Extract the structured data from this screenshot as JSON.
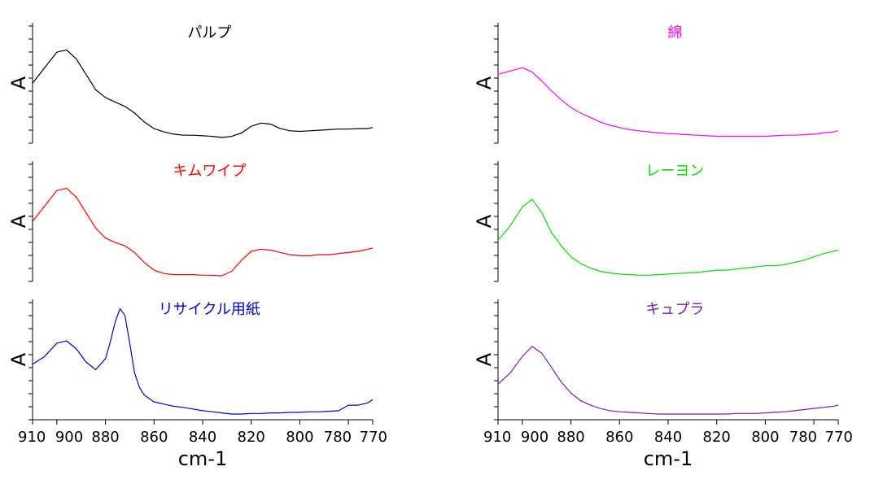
{
  "chart_data": {
    "type": "line",
    "x_axis": {
      "label": "cm-1",
      "ticks": [
        910,
        900,
        880,
        860,
        840,
        820,
        800,
        780,
        770
      ],
      "range": [
        910,
        770
      ],
      "reversed": true
    },
    "y_axis": {
      "label": "A"
    },
    "grid": false,
    "panels": [
      {
        "title": "パルプ",
        "color": "#000000",
        "column": 0,
        "row": 0,
        "x": [
          910,
          905,
          900,
          896,
          892,
          888,
          884,
          880,
          876,
          872,
          868,
          864,
          860,
          856,
          852,
          848,
          844,
          840,
          836,
          832,
          828,
          824,
          820,
          816,
          812,
          808,
          804,
          800,
          796,
          792,
          788,
          784,
          780,
          776,
          772,
          770
        ],
        "y": [
          0.52,
          0.66,
          0.8,
          0.82,
          0.74,
          0.6,
          0.46,
          0.39,
          0.35,
          0.31,
          0.25,
          0.17,
          0.11,
          0.08,
          0.06,
          0.05,
          0.05,
          0.045,
          0.04,
          0.03,
          0.04,
          0.07,
          0.13,
          0.16,
          0.15,
          0.11,
          0.09,
          0.085,
          0.09,
          0.095,
          0.1,
          0.105,
          0.105,
          0.11,
          0.11,
          0.12
        ]
      },
      {
        "title": "キムワイプ",
        "color": "#ff0000",
        "column": 0,
        "row": 1,
        "x": [
          910,
          905,
          900,
          896,
          892,
          888,
          884,
          880,
          876,
          872,
          868,
          864,
          860,
          856,
          852,
          848,
          844,
          840,
          836,
          832,
          828,
          824,
          820,
          816,
          812,
          808,
          804,
          800,
          796,
          792,
          788,
          784,
          780,
          776,
          772,
          770
        ],
        "y": [
          0.52,
          0.66,
          0.8,
          0.82,
          0.74,
          0.6,
          0.46,
          0.37,
          0.33,
          0.3,
          0.24,
          0.15,
          0.08,
          0.05,
          0.04,
          0.04,
          0.04,
          0.035,
          0.035,
          0.03,
          0.07,
          0.17,
          0.25,
          0.27,
          0.26,
          0.24,
          0.22,
          0.21,
          0.21,
          0.22,
          0.22,
          0.23,
          0.24,
          0.25,
          0.27,
          0.28
        ]
      },
      {
        "title": "リサイクル用紙",
        "color": "#0000cc",
        "column": 0,
        "row": 2,
        "x": [
          910,
          905,
          900,
          896,
          892,
          888,
          884,
          880,
          878,
          876,
          874,
          872,
          870,
          868,
          866,
          864,
          860,
          856,
          852,
          848,
          844,
          840,
          836,
          832,
          828,
          824,
          820,
          816,
          812,
          808,
          804,
          800,
          796,
          792,
          788,
          784,
          780,
          776,
          772,
          770
        ],
        "y": [
          0.48,
          0.55,
          0.67,
          0.69,
          0.62,
          0.5,
          0.43,
          0.53,
          0.68,
          0.86,
          0.98,
          0.92,
          0.67,
          0.4,
          0.27,
          0.2,
          0.14,
          0.12,
          0.1,
          0.09,
          0.075,
          0.06,
          0.05,
          0.04,
          0.03,
          0.03,
          0.035,
          0.035,
          0.04,
          0.04,
          0.045,
          0.045,
          0.05,
          0.05,
          0.055,
          0.06,
          0.11,
          0.11,
          0.13,
          0.16
        ]
      },
      {
        "title": "綿",
        "color": "#ff00ff",
        "column": 1,
        "row": 0,
        "x": [
          910,
          905,
          900,
          896,
          892,
          888,
          884,
          880,
          876,
          872,
          868,
          864,
          860,
          856,
          852,
          848,
          844,
          840,
          836,
          832,
          828,
          824,
          820,
          816,
          812,
          808,
          804,
          800,
          796,
          792,
          788,
          784,
          780,
          776,
          772,
          770
        ],
        "y": [
          0.6,
          0.63,
          0.66,
          0.62,
          0.54,
          0.45,
          0.37,
          0.3,
          0.25,
          0.21,
          0.17,
          0.14,
          0.12,
          0.1,
          0.09,
          0.08,
          0.07,
          0.065,
          0.06,
          0.055,
          0.05,
          0.045,
          0.04,
          0.04,
          0.04,
          0.04,
          0.04,
          0.04,
          0.045,
          0.05,
          0.05,
          0.055,
          0.06,
          0.07,
          0.08,
          0.09
        ]
      },
      {
        "title": "レーヨン",
        "color": "#00dd00",
        "column": 1,
        "row": 1,
        "x": [
          910,
          905,
          900,
          896,
          892,
          888,
          884,
          880,
          876,
          872,
          868,
          864,
          860,
          856,
          852,
          848,
          844,
          840,
          836,
          832,
          828,
          824,
          820,
          816,
          812,
          808,
          804,
          800,
          796,
          792,
          788,
          784,
          780,
          776,
          772,
          770
        ],
        "y": [
          0.35,
          0.48,
          0.65,
          0.72,
          0.6,
          0.42,
          0.3,
          0.2,
          0.14,
          0.1,
          0.07,
          0.055,
          0.045,
          0.04,
          0.035,
          0.035,
          0.04,
          0.045,
          0.05,
          0.055,
          0.06,
          0.07,
          0.08,
          0.08,
          0.09,
          0.1,
          0.11,
          0.12,
          0.12,
          0.13,
          0.15,
          0.17,
          0.2,
          0.23,
          0.25,
          0.26
        ]
      },
      {
        "title": "キュプラ",
        "color": "#7a1fa2",
        "column": 1,
        "row": 2,
        "x": [
          910,
          905,
          900,
          896,
          892,
          888,
          884,
          880,
          876,
          872,
          868,
          864,
          860,
          856,
          852,
          848,
          844,
          840,
          836,
          832,
          828,
          824,
          820,
          816,
          812,
          808,
          804,
          800,
          796,
          792,
          788,
          784,
          780,
          776,
          772,
          770
        ],
        "y": [
          0.3,
          0.4,
          0.55,
          0.64,
          0.58,
          0.45,
          0.32,
          0.22,
          0.15,
          0.11,
          0.08,
          0.06,
          0.05,
          0.045,
          0.04,
          0.035,
          0.03,
          0.03,
          0.03,
          0.03,
          0.03,
          0.03,
          0.03,
          0.03,
          0.035,
          0.035,
          0.035,
          0.04,
          0.045,
          0.05,
          0.06,
          0.07,
          0.08,
          0.09,
          0.1,
          0.11
        ]
      }
    ]
  }
}
